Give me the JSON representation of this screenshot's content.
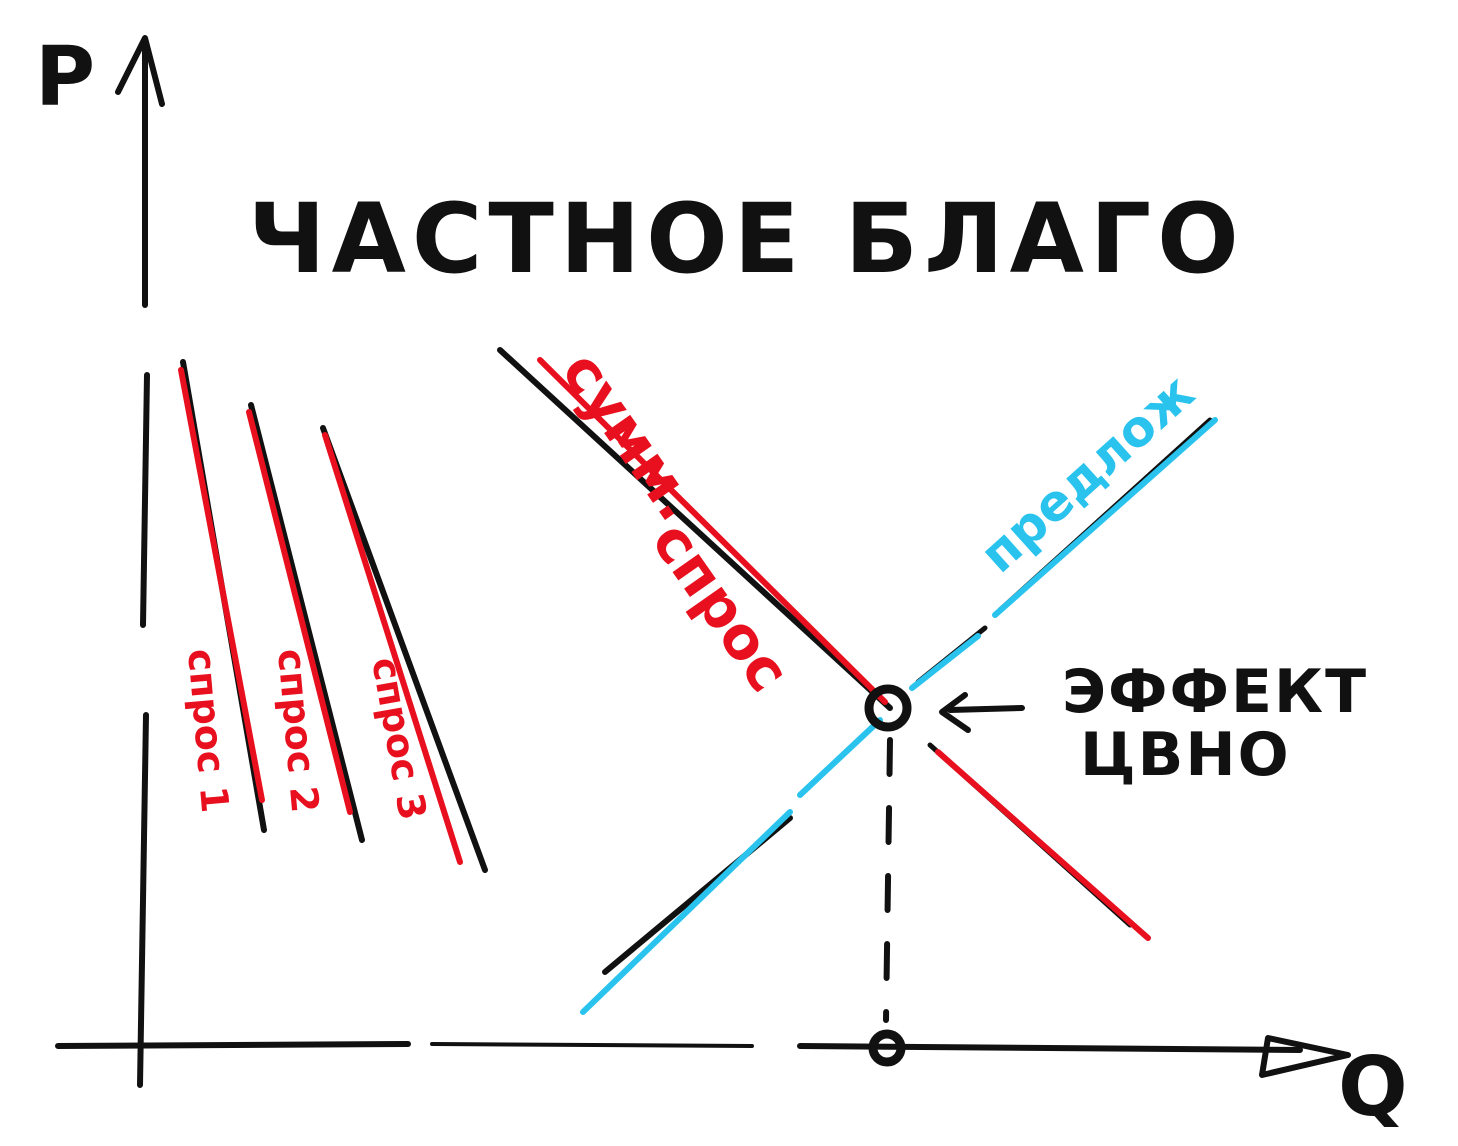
{
  "title": "ЧАСТНОЕ БЛАГО",
  "axes": {
    "y_label": "P",
    "x_label": "Q"
  },
  "individual_demands": [
    {
      "label": "спрос 1"
    },
    {
      "label": "спрос 2"
    },
    {
      "label": "спрос 3"
    }
  ],
  "market_demand_label_1": "сумм.",
  "market_demand_label_2": "спрос",
  "supply_label": "предлож",
  "equilibrium_label_1": "ЭФФЕКТ",
  "equilibrium_label_2": "ЦВНО",
  "colors": {
    "ink": "#111111",
    "demand": "#e8101e",
    "supply": "#29c3ee"
  }
}
